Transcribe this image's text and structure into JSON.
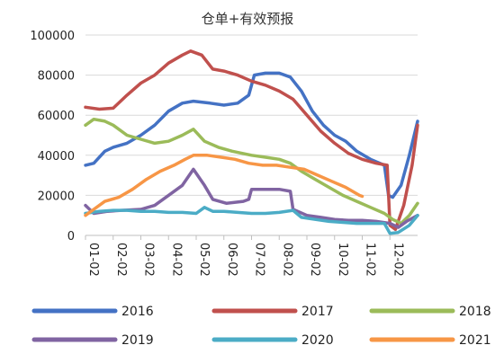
{
  "chart_data": {
    "type": "line",
    "title": "仓单+有效预报",
    "xlabel": "",
    "ylabel": "",
    "ylim": [
      0,
      100000
    ],
    "yticks": [
      0,
      20000,
      40000,
      60000,
      80000,
      100000
    ],
    "xlim": [
      1,
      13
    ],
    "xticks": [
      {
        "x": 1,
        "label": "01-02"
      },
      {
        "x": 2,
        "label": "02-02"
      },
      {
        "x": 3,
        "label": "03-02"
      },
      {
        "x": 4,
        "label": "04-02"
      },
      {
        "x": 5,
        "label": "05-02"
      },
      {
        "x": 6,
        "label": "06-02"
      },
      {
        "x": 7,
        "label": "07-02"
      },
      {
        "x": 8,
        "label": "08-02"
      },
      {
        "x": 9,
        "label": "09-02"
      },
      {
        "x": 10,
        "label": "10-02"
      },
      {
        "x": 11,
        "label": "11-02"
      },
      {
        "x": 12,
        "label": "12-02"
      }
    ],
    "grid": "horizontal",
    "legend_position": "bottom",
    "series": [
      {
        "name": "2016",
        "color": "#4472C4",
        "points": [
          [
            1.0,
            35000
          ],
          [
            1.3,
            36000
          ],
          [
            1.7,
            42000
          ],
          [
            2.0,
            44000
          ],
          [
            2.5,
            46000
          ],
          [
            3.0,
            50000
          ],
          [
            3.5,
            55000
          ],
          [
            4.0,
            62000
          ],
          [
            4.5,
            66000
          ],
          [
            4.9,
            67000
          ],
          [
            5.5,
            66000
          ],
          [
            6.0,
            65000
          ],
          [
            6.5,
            66000
          ],
          [
            6.9,
            70000
          ],
          [
            7.1,
            80000
          ],
          [
            7.5,
            81000
          ],
          [
            8.0,
            81000
          ],
          [
            8.4,
            79000
          ],
          [
            8.8,
            72000
          ],
          [
            9.2,
            62000
          ],
          [
            9.6,
            55000
          ],
          [
            10.0,
            50000
          ],
          [
            10.4,
            47000
          ],
          [
            10.8,
            42000
          ],
          [
            11.3,
            38000
          ],
          [
            11.8,
            35000
          ],
          [
            11.95,
            20000
          ],
          [
            12.1,
            19000
          ],
          [
            12.4,
            25000
          ],
          [
            12.7,
            40000
          ],
          [
            13.0,
            57000
          ]
        ]
      },
      {
        "name": "2017",
        "color": "#C0504D",
        "points": [
          [
            1.0,
            64000
          ],
          [
            1.5,
            63000
          ],
          [
            2.0,
            63500
          ],
          [
            2.5,
            70000
          ],
          [
            3.0,
            76000
          ],
          [
            3.5,
            80000
          ],
          [
            4.0,
            86000
          ],
          [
            4.5,
            90000
          ],
          [
            4.8,
            92000
          ],
          [
            5.2,
            90000
          ],
          [
            5.6,
            83000
          ],
          [
            6.0,
            82000
          ],
          [
            6.5,
            80000
          ],
          [
            7.0,
            77000
          ],
          [
            7.5,
            75000
          ],
          [
            8.0,
            72000
          ],
          [
            8.5,
            68000
          ],
          [
            9.0,
            60000
          ],
          [
            9.5,
            52000
          ],
          [
            10.0,
            46000
          ],
          [
            10.5,
            41000
          ],
          [
            11.0,
            38000
          ],
          [
            11.5,
            36000
          ],
          [
            11.9,
            35000
          ],
          [
            12.0,
            5000
          ],
          [
            12.2,
            3000
          ],
          [
            12.5,
            15000
          ],
          [
            12.8,
            35000
          ],
          [
            13.0,
            55000
          ]
        ]
      },
      {
        "name": "2018",
        "color": "#9BBB59",
        "points": [
          [
            1.0,
            55000
          ],
          [
            1.3,
            58000
          ],
          [
            1.7,
            57000
          ],
          [
            2.0,
            55000
          ],
          [
            2.5,
            50000
          ],
          [
            3.0,
            48000
          ],
          [
            3.5,
            46000
          ],
          [
            4.0,
            47000
          ],
          [
            4.5,
            50000
          ],
          [
            4.9,
            53000
          ],
          [
            5.3,
            47000
          ],
          [
            5.8,
            44000
          ],
          [
            6.3,
            42000
          ],
          [
            7.0,
            40000
          ],
          [
            7.5,
            39000
          ],
          [
            8.0,
            38000
          ],
          [
            8.4,
            36000
          ],
          [
            8.8,
            32000
          ],
          [
            9.3,
            28000
          ],
          [
            9.8,
            24000
          ],
          [
            10.3,
            20000
          ],
          [
            10.8,
            17000
          ],
          [
            11.3,
            14000
          ],
          [
            11.8,
            11000
          ],
          [
            12.1,
            8000
          ],
          [
            12.4,
            6000
          ],
          [
            12.7,
            10000
          ],
          [
            13.0,
            16000
          ]
        ]
      },
      {
        "name": "2019",
        "color": "#8064A2",
        "points": [
          [
            1.0,
            15000
          ],
          [
            1.3,
            11000
          ],
          [
            1.8,
            12000
          ],
          [
            2.3,
            12500
          ],
          [
            3.0,
            13000
          ],
          [
            3.5,
            15000
          ],
          [
            4.0,
            20000
          ],
          [
            4.5,
            25000
          ],
          [
            4.9,
            33000
          ],
          [
            5.3,
            25000
          ],
          [
            5.6,
            18000
          ],
          [
            6.1,
            16000
          ],
          [
            6.7,
            17000
          ],
          [
            6.9,
            18000
          ],
          [
            7.0,
            23000
          ],
          [
            7.5,
            23000
          ],
          [
            8.0,
            23000
          ],
          [
            8.4,
            22000
          ],
          [
            8.5,
            13000
          ],
          [
            9.0,
            10000
          ],
          [
            9.5,
            9000
          ],
          [
            10.0,
            8000
          ],
          [
            10.5,
            7500
          ],
          [
            11.0,
            7500
          ],
          [
            11.5,
            7000
          ],
          [
            12.0,
            6000
          ],
          [
            12.3,
            4000
          ],
          [
            12.6,
            7000
          ],
          [
            13.0,
            10000
          ]
        ]
      },
      {
        "name": "2020",
        "color": "#4BACC6",
        "points": [
          [
            1.0,
            11000
          ],
          [
            1.5,
            12000
          ],
          [
            2.0,
            12500
          ],
          [
            2.5,
            12500
          ],
          [
            3.0,
            12000
          ],
          [
            3.5,
            12000
          ],
          [
            4.0,
            11500
          ],
          [
            4.5,
            11500
          ],
          [
            5.0,
            11000
          ],
          [
            5.3,
            14000
          ],
          [
            5.6,
            12000
          ],
          [
            6.0,
            12000
          ],
          [
            6.5,
            11500
          ],
          [
            7.0,
            11000
          ],
          [
            7.5,
            11000
          ],
          [
            8.0,
            11500
          ],
          [
            8.5,
            12500
          ],
          [
            8.8,
            9000
          ],
          [
            9.3,
            8000
          ],
          [
            9.8,
            7000
          ],
          [
            10.3,
            6500
          ],
          [
            10.8,
            6000
          ],
          [
            11.3,
            6000
          ],
          [
            11.8,
            6000
          ],
          [
            12.0,
            1000
          ],
          [
            12.3,
            1500
          ],
          [
            12.7,
            5000
          ],
          [
            13.0,
            10000
          ]
        ]
      },
      {
        "name": "2021",
        "color": "#F79646",
        "points": [
          [
            1.0,
            10000
          ],
          [
            1.3,
            13000
          ],
          [
            1.7,
            17000
          ],
          [
            2.2,
            19000
          ],
          [
            2.7,
            23000
          ],
          [
            3.2,
            28000
          ],
          [
            3.7,
            32000
          ],
          [
            4.2,
            35000
          ],
          [
            4.6,
            38000
          ],
          [
            4.9,
            40000
          ],
          [
            5.4,
            40000
          ],
          [
            5.9,
            39000
          ],
          [
            6.4,
            38000
          ],
          [
            6.9,
            36000
          ],
          [
            7.4,
            35000
          ],
          [
            7.9,
            35000
          ],
          [
            8.4,
            34000
          ],
          [
            8.9,
            33000
          ],
          [
            9.4,
            30000
          ],
          [
            9.9,
            27000
          ],
          [
            10.4,
            24000
          ],
          [
            10.9,
            20000
          ],
          [
            11.0,
            19500
          ]
        ]
      }
    ]
  }
}
